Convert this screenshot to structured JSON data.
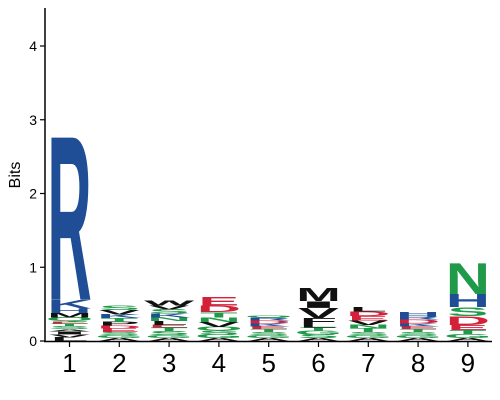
{
  "chart_data": {
    "type": "sequence-logo",
    "ylabel": "Bits",
    "ylim": [
      0,
      4.5
    ],
    "yticks": [
      "0",
      "1",
      "2",
      "3",
      "4"
    ],
    "positions": [
      "1",
      "2",
      "3",
      "4",
      "5",
      "6",
      "7",
      "8",
      "9"
    ],
    "colors": {
      "basic": "#1f4e96",
      "acidic": "#d4213a",
      "polar": "#1f9a48",
      "hydrophobic": "#111111",
      "other": "#7a3d9a",
      "pink": "#e58fb0"
    },
    "columns": [
      {
        "position": "1",
        "letters": [
          {
            "char": "L",
            "height": 0.05,
            "color": "hydrophobic"
          },
          {
            "char": "V",
            "height": 0.04,
            "color": "hydrophobic"
          },
          {
            "char": "I",
            "height": 0.04,
            "color": "hydrophobic"
          },
          {
            "char": "A",
            "height": 0.03,
            "color": "hydrophobic"
          },
          {
            "char": "S",
            "height": 0.04,
            "color": "polar"
          },
          {
            "char": "T",
            "height": 0.04,
            "color": "polar"
          },
          {
            "char": "E",
            "height": 0.03,
            "color": "acidic"
          },
          {
            "char": "Q",
            "height": 0.05,
            "color": "polar"
          },
          {
            "char": "M",
            "height": 0.06,
            "color": "hydrophobic"
          },
          {
            "char": "H",
            "height": 0.06,
            "color": "basic"
          },
          {
            "char": "K",
            "height": 0.12,
            "color": "basic"
          },
          {
            "char": "R",
            "height": 2.3,
            "color": "basic"
          }
        ]
      },
      {
        "position": "2",
        "letters": [
          {
            "char": "A",
            "height": 0.04,
            "color": "hydrophobic"
          },
          {
            "char": "G",
            "height": 0.04,
            "color": "polar"
          },
          {
            "char": "S",
            "height": 0.04,
            "color": "polar"
          },
          {
            "char": "E",
            "height": 0.05,
            "color": "acidic"
          },
          {
            "char": "D",
            "height": 0.04,
            "color": "acidic"
          },
          {
            "char": "P",
            "height": 0.05,
            "color": "hydrophobic"
          },
          {
            "char": "T",
            "height": 0.05,
            "color": "polar"
          },
          {
            "char": "K",
            "height": 0.05,
            "color": "basic"
          },
          {
            "char": "V",
            "height": 0.06,
            "color": "hydrophobic"
          },
          {
            "char": "S",
            "height": 0.06,
            "color": "polar"
          }
        ]
      },
      {
        "position": "3",
        "letters": [
          {
            "char": "A",
            "height": 0.04,
            "color": "hydrophobic"
          },
          {
            "char": "G",
            "height": 0.04,
            "color": "polar"
          },
          {
            "char": "S",
            "height": 0.05,
            "color": "polar"
          },
          {
            "char": "T",
            "height": 0.05,
            "color": "polar"
          },
          {
            "char": "E",
            "height": 0.04,
            "color": "acidic"
          },
          {
            "char": "L",
            "height": 0.05,
            "color": "hydrophobic"
          },
          {
            "char": "N",
            "height": 0.05,
            "color": "polar"
          },
          {
            "char": "K",
            "height": 0.05,
            "color": "basic"
          },
          {
            "char": "S",
            "height": 0.06,
            "color": "polar"
          },
          {
            "char": "V",
            "height": 0.05,
            "color": "hydrophobic"
          },
          {
            "char": "W",
            "height": 0.07,
            "color": "hydrophobic"
          }
        ]
      },
      {
        "position": "4",
        "letters": [
          {
            "char": "A",
            "height": 0.04,
            "color": "hydrophobic"
          },
          {
            "char": "G",
            "height": 0.05,
            "color": "polar"
          },
          {
            "char": "S",
            "height": 0.05,
            "color": "polar"
          },
          {
            "char": "Q",
            "height": 0.05,
            "color": "polar"
          },
          {
            "char": "V",
            "height": 0.07,
            "color": "hydrophobic"
          },
          {
            "char": "N",
            "height": 0.06,
            "color": "polar"
          },
          {
            "char": "T",
            "height": 0.07,
            "color": "polar"
          },
          {
            "char": "D",
            "height": 0.09,
            "color": "acidic"
          },
          {
            "char": "E",
            "height": 0.12,
            "color": "acidic"
          }
        ]
      },
      {
        "position": "5",
        "letters": [
          {
            "char": "A",
            "height": 0.04,
            "color": "hydrophobic"
          },
          {
            "char": "G",
            "height": 0.04,
            "color": "polar"
          },
          {
            "char": "S",
            "height": 0.04,
            "color": "polar"
          },
          {
            "char": "T",
            "height": 0.04,
            "color": "polar"
          },
          {
            "char": "E",
            "height": 0.04,
            "color": "acidic"
          },
          {
            "char": "K",
            "height": 0.04,
            "color": "basic"
          },
          {
            "char": "D",
            "height": 0.04,
            "color": "acidic"
          },
          {
            "char": "R",
            "height": 0.04,
            "color": "basic"
          },
          {
            "char": "Q",
            "height": 0.03,
            "color": "polar"
          }
        ]
      },
      {
        "position": "6",
        "letters": [
          {
            "char": "A",
            "height": 0.04,
            "color": "hydrophobic"
          },
          {
            "char": "S",
            "height": 0.05,
            "color": "polar"
          },
          {
            "char": "G",
            "height": 0.05,
            "color": "polar"
          },
          {
            "char": "T",
            "height": 0.04,
            "color": "polar"
          },
          {
            "char": "L",
            "height": 0.05,
            "color": "hydrophobic"
          },
          {
            "char": "F",
            "height": 0.08,
            "color": "hydrophobic"
          },
          {
            "char": "V",
            "height": 0.14,
            "color": "hydrophobic"
          },
          {
            "char": "I",
            "height": 0.09,
            "color": "hydrophobic"
          },
          {
            "char": "M",
            "height": 0.18,
            "color": "hydrophobic"
          }
        ]
      },
      {
        "position": "7",
        "letters": [
          {
            "char": "A",
            "height": 0.04,
            "color": "hydrophobic"
          },
          {
            "char": "G",
            "height": 0.04,
            "color": "polar"
          },
          {
            "char": "S",
            "height": 0.04,
            "color": "polar"
          },
          {
            "char": "T",
            "height": 0.05,
            "color": "polar"
          },
          {
            "char": "N",
            "height": 0.05,
            "color": "polar"
          },
          {
            "char": "V",
            "height": 0.06,
            "color": "hydrophobic"
          },
          {
            "char": "E",
            "height": 0.06,
            "color": "acidic"
          },
          {
            "char": "D",
            "height": 0.06,
            "color": "acidic"
          },
          {
            "char": "L",
            "height": 0.06,
            "color": "hydrophobic"
          }
        ]
      },
      {
        "position": "8",
        "letters": [
          {
            "char": "A",
            "height": 0.04,
            "color": "hydrophobic"
          },
          {
            "char": "G",
            "height": 0.04,
            "color": "polar"
          },
          {
            "char": "S",
            "height": 0.04,
            "color": "polar"
          },
          {
            "char": "T",
            "height": 0.04,
            "color": "polar"
          },
          {
            "char": "E",
            "height": 0.04,
            "color": "acidic"
          },
          {
            "char": "K",
            "height": 0.04,
            "color": "basic"
          },
          {
            "char": "D",
            "height": 0.05,
            "color": "acidic"
          },
          {
            "char": "R",
            "height": 0.05,
            "color": "basic"
          },
          {
            "char": "H",
            "height": 0.05,
            "color": "basic"
          }
        ]
      },
      {
        "position": "9",
        "letters": [
          {
            "char": "A",
            "height": 0.04,
            "color": "hydrophobic"
          },
          {
            "char": "G",
            "height": 0.05,
            "color": "polar"
          },
          {
            "char": "T",
            "height": 0.06,
            "color": "polar"
          },
          {
            "char": "E",
            "height": 0.07,
            "color": "acidic"
          },
          {
            "char": "D",
            "height": 0.12,
            "color": "acidic"
          },
          {
            "char": "S",
            "height": 0.12,
            "color": "polar"
          },
          {
            "char": "H",
            "height": 0.18,
            "color": "basic"
          },
          {
            "char": "N",
            "height": 0.43,
            "color": "polar"
          }
        ]
      }
    ]
  }
}
